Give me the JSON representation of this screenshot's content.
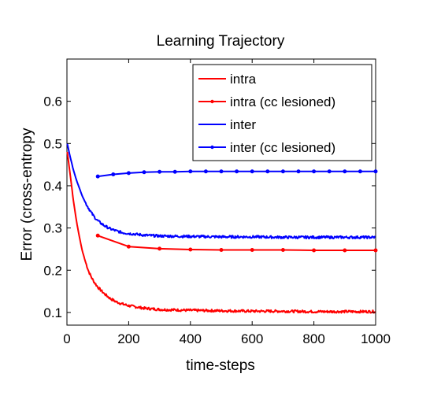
{
  "chart_data": {
    "type": "line",
    "title": "Learning Trajectory",
    "xlabel": "time-steps",
    "ylabel": "Error (cross-entropy",
    "xlim": [
      0,
      1000
    ],
    "ylim": [
      0.07,
      0.7
    ],
    "xticks": [
      0,
      200,
      400,
      600,
      800,
      1000
    ],
    "yticks": [
      0.1,
      0.2,
      0.3,
      0.4,
      0.5,
      0.6
    ],
    "ytick_labels": [
      "0.1",
      "0.2",
      "0.3",
      "0.4",
      "0.5",
      "0.6"
    ],
    "grid": false,
    "legend_position": "top-right",
    "series": [
      {
        "name": "intra",
        "color": "#ff0000",
        "marker": false,
        "noisy": true,
        "x": [
          1,
          10,
          20,
          30,
          40,
          50,
          60,
          70,
          80,
          90,
          100,
          120,
          140,
          160,
          180,
          200,
          250,
          300,
          350,
          400,
          500,
          600,
          700,
          800,
          900,
          1000
        ],
        "y": [
          0.48,
          0.43,
          0.37,
          0.32,
          0.28,
          0.245,
          0.22,
          0.198,
          0.182,
          0.17,
          0.16,
          0.145,
          0.133,
          0.125,
          0.12,
          0.116,
          0.11,
          0.107,
          0.106,
          0.105,
          0.104,
          0.103,
          0.103,
          0.102,
          0.102,
          0.102
        ]
      },
      {
        "name": "intra (cc lesioned)",
        "color": "#ff0000",
        "marker": true,
        "noisy": false,
        "x": [
          100,
          200,
          300,
          400,
          500,
          600,
          700,
          800,
          900,
          1000
        ],
        "y": [
          0.282,
          0.256,
          0.251,
          0.249,
          0.248,
          0.248,
          0.248,
          0.247,
          0.247,
          0.247
        ]
      },
      {
        "name": "inter",
        "color": "#0000ff",
        "marker": false,
        "noisy": true,
        "x": [
          1,
          10,
          20,
          30,
          40,
          50,
          60,
          70,
          80,
          90,
          100,
          120,
          140,
          160,
          180,
          200,
          250,
          300,
          400,
          500,
          600,
          700,
          800,
          900,
          1000
        ],
        "y": [
          0.5,
          0.47,
          0.44,
          0.415,
          0.395,
          0.375,
          0.36,
          0.347,
          0.335,
          0.325,
          0.317,
          0.306,
          0.298,
          0.293,
          0.289,
          0.287,
          0.283,
          0.281,
          0.28,
          0.279,
          0.279,
          0.278,
          0.278,
          0.278,
          0.278
        ]
      },
      {
        "name": "inter (cc lesioned)",
        "color": "#0000ff",
        "marker": true,
        "noisy": false,
        "x": [
          100,
          150,
          200,
          250,
          300,
          350,
          400,
          450,
          500,
          550,
          600,
          650,
          700,
          750,
          800,
          850,
          900,
          950,
          1000
        ],
        "y": [
          0.422,
          0.427,
          0.43,
          0.432,
          0.433,
          0.433,
          0.434,
          0.434,
          0.434,
          0.434,
          0.434,
          0.434,
          0.434,
          0.434,
          0.434,
          0.434,
          0.434,
          0.434,
          0.434
        ]
      }
    ]
  }
}
